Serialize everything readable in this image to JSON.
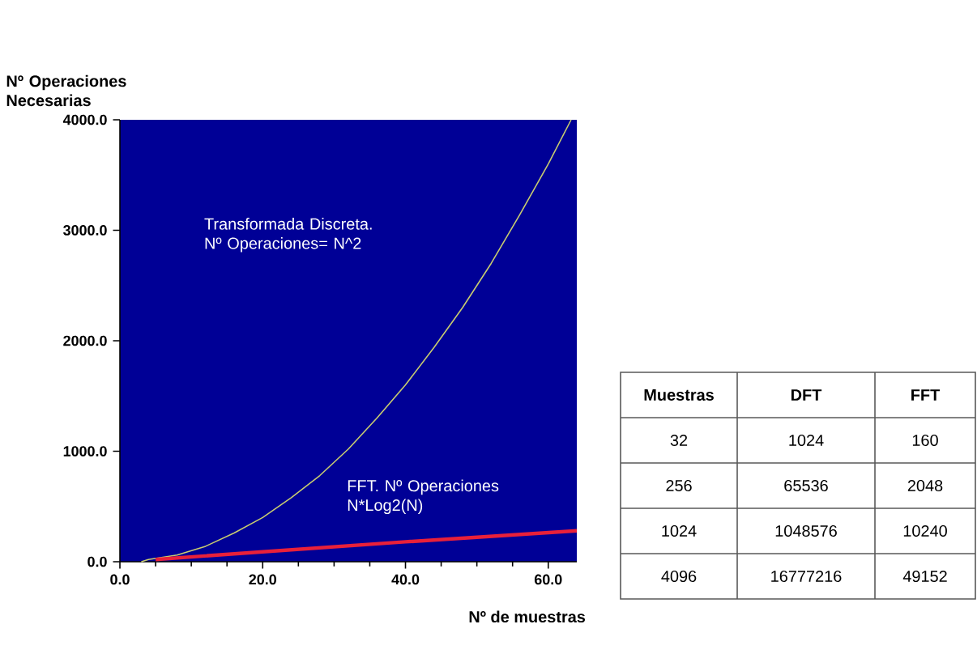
{
  "chart_data": [
    {
      "type": "line",
      "ylabel": "Nº Operaciones Necesarias",
      "xlabel": "Nº de muestras",
      "xlim": [
        0,
        64
      ],
      "ylim": [
        0,
        4000
      ],
      "xticks": [
        {
          "value": 0,
          "label": "0.0"
        },
        {
          "value": 20,
          "label": "20.0"
        },
        {
          "value": 40,
          "label": "40.0"
        },
        {
          "value": 60,
          "label": "60.0"
        }
      ],
      "yticks": [
        {
          "value": 0,
          "label": "0.0"
        },
        {
          "value": 1000,
          "label": "1000.0"
        },
        {
          "value": 2000,
          "label": "2000.0"
        },
        {
          "value": 3000,
          "label": "3000.0"
        },
        {
          "value": 4000,
          "label": "4000.0"
        }
      ],
      "grid": false,
      "marker": "none",
      "line_style": "solid",
      "series": [
        {
          "color": "#c8cc70",
          "x": [
            3,
            4,
            8,
            12,
            16,
            20,
            24,
            28,
            32,
            36,
            40,
            44,
            48,
            52,
            56,
            60,
            63.2
          ],
          "values": [
            0,
            20,
            60,
            140,
            260,
            400,
            580,
            780,
            1020,
            1300,
            1600,
            1940,
            2300,
            2700,
            3140,
            3600,
            4000
          ]
        },
        {
          "color": "#e8203a",
          "x": [
            5,
            20,
            40,
            64
          ],
          "values": [
            20,
            90,
            180,
            280
          ]
        }
      ],
      "annotations": [
        "Transformada Discreta. Nº Operaciones= N^2",
        "FFT. Nº Operaciones N*Log2(N)"
      ]
    },
    {
      "type": "other",
      "categories": [
        "Muestras",
        "DFT",
        "FFT"
      ],
      "annotations": [
        "32",
        "1024",
        "160",
        "256",
        "65536",
        "2048",
        "1024",
        "1048576",
        "10240",
        "4096",
        "16777216",
        "49152"
      ]
    }
  ]
}
